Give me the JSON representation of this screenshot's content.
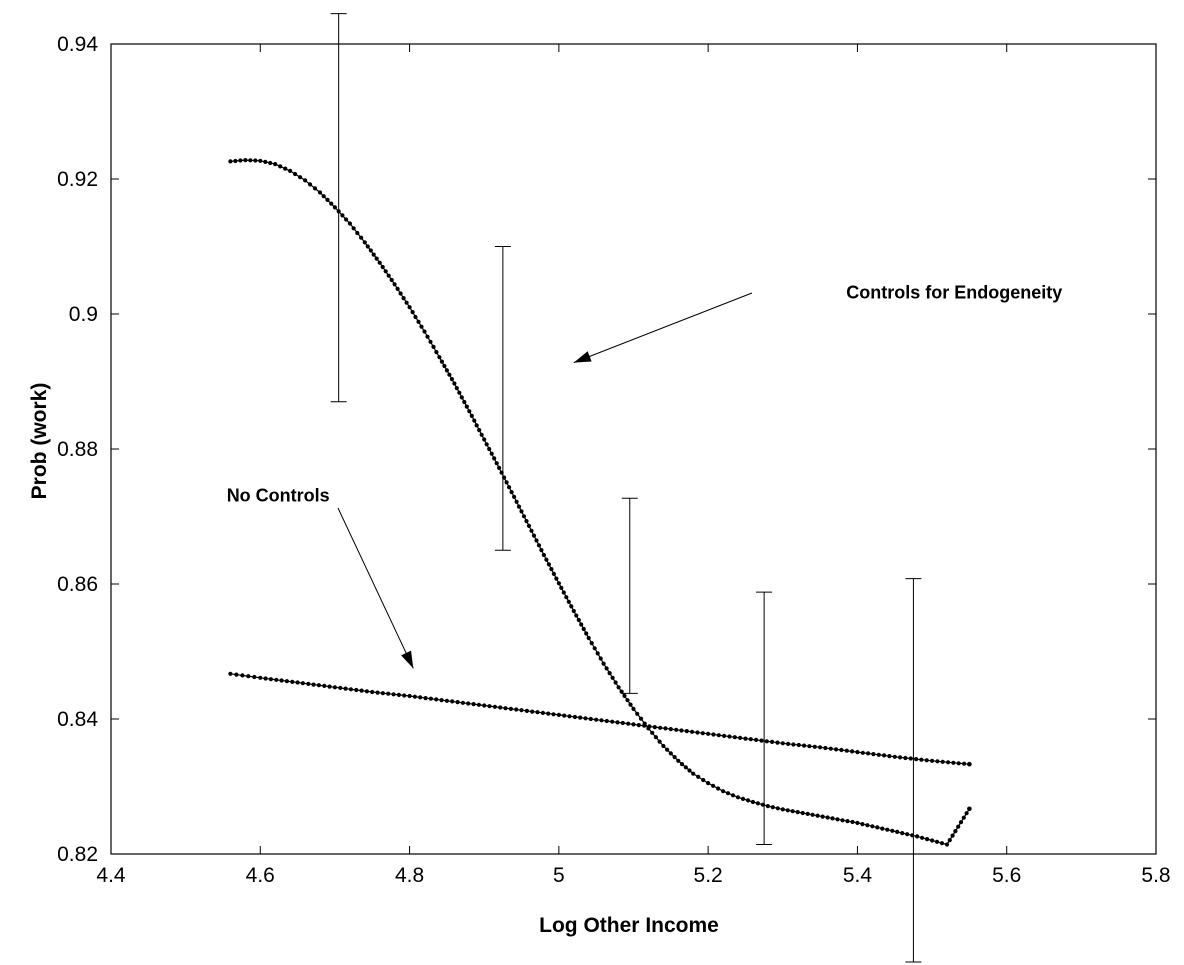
{
  "chart_data": {
    "type": "line",
    "title": "",
    "xlabel": "Log Other Income",
    "ylabel": "Prob (work)",
    "xlim": [
      4.4,
      5.8
    ],
    "ylim": [
      0.82,
      0.94
    ],
    "x_ticks": [
      4.4,
      4.6,
      4.8,
      5,
      5.2,
      5.4,
      5.6,
      5.8
    ],
    "x_tick_labels": [
      "4.4",
      "4.6",
      "4.8",
      "5",
      "5.2",
      "5.4",
      "5.6",
      "5.8"
    ],
    "y_ticks": [
      0.82,
      0.84,
      0.86,
      0.88,
      0.9,
      0.92,
      0.94
    ],
    "y_tick_labels": [
      "0.82",
      "0.84",
      "0.86",
      "0.88",
      "0.9",
      "0.92",
      "0.94"
    ],
    "grid": false,
    "legend": "none",
    "series": [
      {
        "x": [
          4.56,
          4.58,
          4.6,
          4.62,
          4.64,
          4.66,
          4.68,
          4.7,
          4.72,
          4.74,
          4.76,
          4.78,
          4.8,
          4.82,
          4.84,
          4.86,
          4.88,
          4.9,
          4.92,
          4.94,
          4.96,
          4.98,
          5.0,
          5.02,
          5.04,
          5.06,
          5.08,
          5.1,
          5.12,
          5.14,
          5.16,
          5.18,
          5.2,
          5.22,
          5.24,
          5.26,
          5.28,
          5.3,
          5.32,
          5.34,
          5.36,
          5.38,
          5.4,
          5.42,
          5.44,
          5.46,
          5.48,
          5.5,
          5.52,
          5.55
        ],
        "y": [
          0.9226,
          0.9228,
          0.9227,
          0.9222,
          0.9212,
          0.9198,
          0.918,
          0.9158,
          0.9134,
          0.9106,
          0.9076,
          0.9044,
          0.901,
          0.8974,
          0.8936,
          0.8897,
          0.8856,
          0.8814,
          0.8772,
          0.8729,
          0.8686,
          0.8643,
          0.8601,
          0.856,
          0.852,
          0.8482,
          0.8447,
          0.8415,
          0.8386,
          0.836,
          0.8338,
          0.8319,
          0.8305,
          0.8293,
          0.8284,
          0.8277,
          0.8271,
          0.8266,
          0.8262,
          0.8258,
          0.8254,
          0.825,
          0.8246,
          0.8241,
          0.8236,
          0.8231,
          0.8226,
          0.822,
          0.8214,
          0.8267
        ]
      },
      {
        "x": [
          4.56,
          4.6,
          4.65,
          4.7,
          4.75,
          4.8,
          4.85,
          4.9,
          4.95,
          5.0,
          5.05,
          5.1,
          5.15,
          5.2,
          5.25,
          5.3,
          5.35,
          5.4,
          5.45,
          5.5,
          5.55
        ],
        "y": [
          0.8467,
          0.8461,
          0.8454,
          0.8447,
          0.844,
          0.8434,
          0.8427,
          0.842,
          0.8413,
          0.8406,
          0.8399,
          0.8392,
          0.8385,
          0.8378,
          0.8371,
          0.8364,
          0.8358,
          0.8351,
          0.8344,
          0.8338,
          0.8333
        ]
      }
    ],
    "error_bars": [
      {
        "x": 4.705,
        "low": 0.887,
        "high": 0.9445
      },
      {
        "x": 4.925,
        "low": 0.865,
        "high": 0.91
      },
      {
        "x": 5.095,
        "low": 0.8438,
        "high": 0.8727
      },
      {
        "x": 5.275,
        "low": 0.8214,
        "high": 0.8588
      },
      {
        "x": 5.475,
        "low": 0.804,
        "high": 0.8608
      }
    ],
    "annotations": [
      {
        "text": "Controls for Endogeneity",
        "x": 5.385,
        "y": 0.9023,
        "arrow_to": [
          5.02,
          0.8928
        ]
      },
      {
        "text": "No Controls",
        "x": 4.555,
        "y": 0.8722,
        "arrow_to": [
          4.805,
          0.8475
        ]
      }
    ]
  }
}
